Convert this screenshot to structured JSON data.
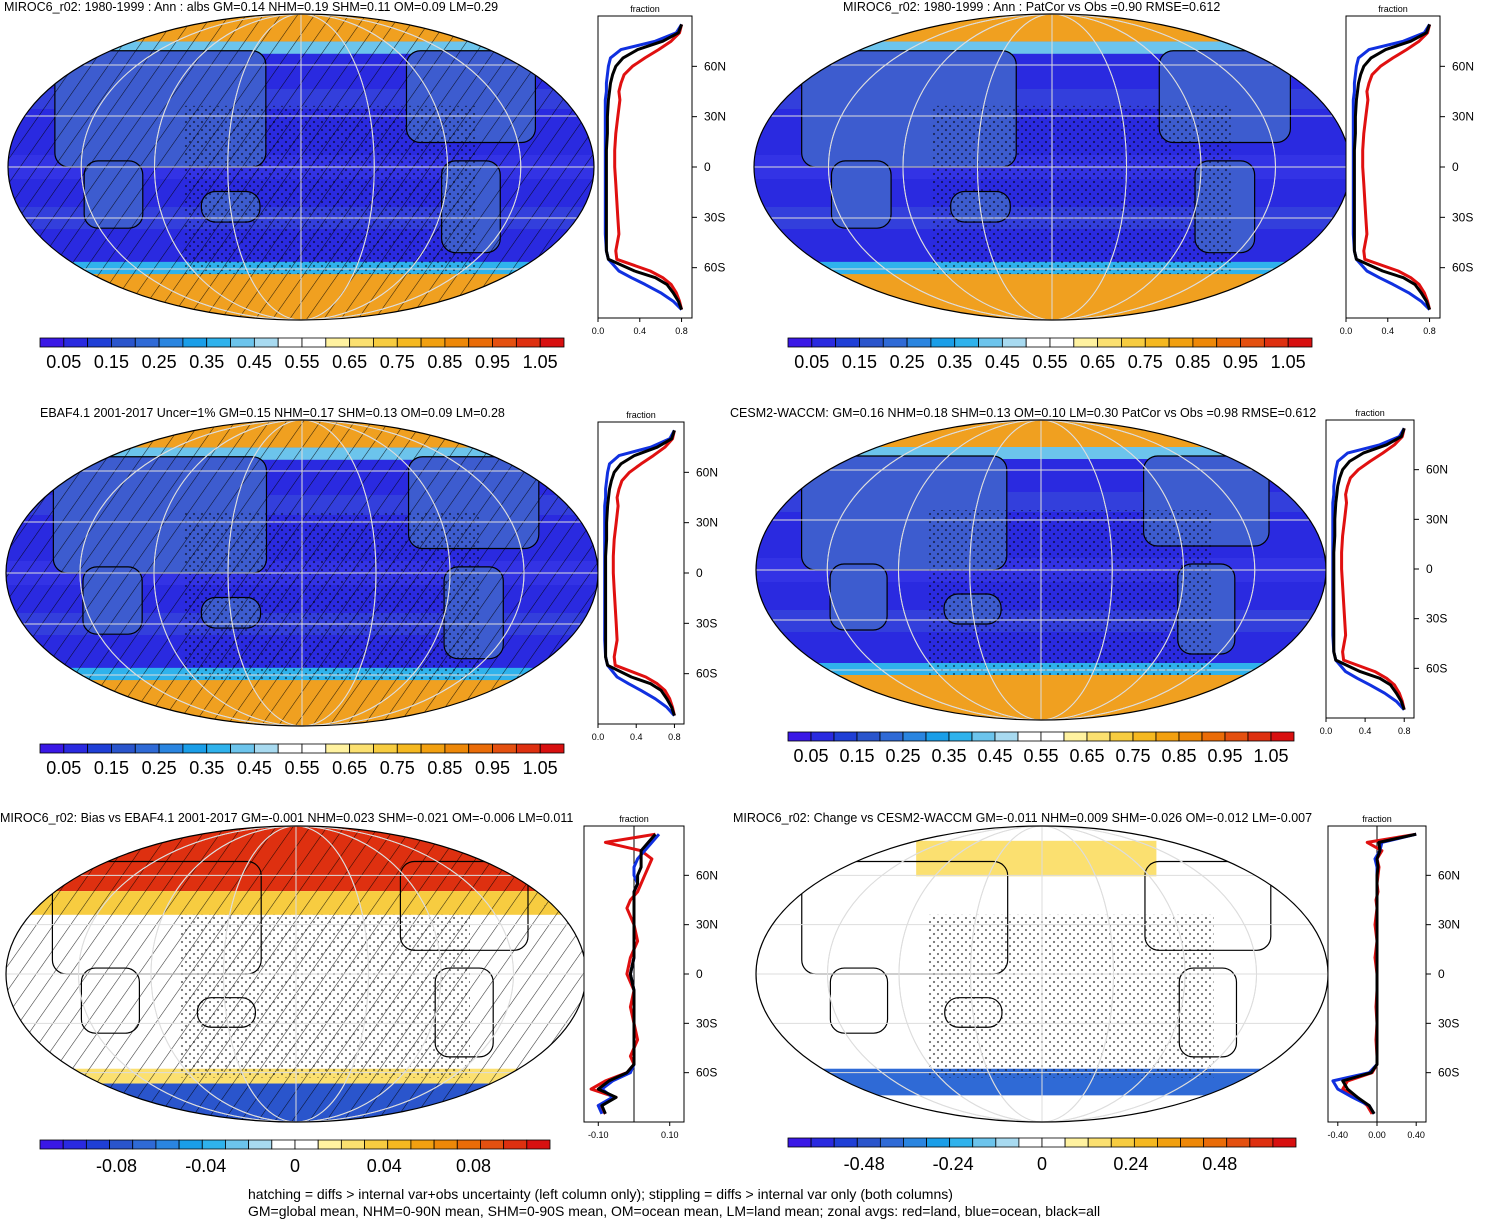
{
  "colors": {
    "ocean_low": "#2a2ae0",
    "land_mid": "#3d5ccf",
    "ice_high": "#f0a020",
    "zonal_land": "#e01010",
    "zonal_ocean": "#1030e0",
    "zonal_all": "#000000"
  },
  "colorbars": {
    "abs": {
      "labels": [
        "0.05",
        "0.15",
        "0.25",
        "0.35",
        "0.45",
        "0.55",
        "0.65",
        "0.75",
        "0.85",
        "0.95",
        "1.05"
      ],
      "colors": [
        "#3a18e6",
        "#2a2ae0",
        "#1f3fd6",
        "#2a55cc",
        "#2f6ad6",
        "#2a85e0",
        "#1a9ee8",
        "#2fb2ec",
        "#6cc4ec",
        "#a8daf0",
        "#ffffff",
        "#ffffff",
        "#fff2a0",
        "#fbe070",
        "#f7cc40",
        "#f5b820",
        "#f2a010",
        "#ee8808",
        "#ea6c08",
        "#e45010",
        "#de3010",
        "#d81010"
      ]
    },
    "bias": {
      "labels": [
        "-0.08",
        "-0.04",
        "0",
        "0.04",
        "0.08"
      ],
      "colors": [
        "#3a18e6",
        "#2a2ae0",
        "#1f3fd6",
        "#2a55cc",
        "#2f6ad6",
        "#2a85e0",
        "#1a9ee8",
        "#2fb2ec",
        "#6cc4ec",
        "#a8daf0",
        "#ffffff",
        "#ffffff",
        "#fff2a0",
        "#fbe070",
        "#f7cc40",
        "#f5b820",
        "#f2a010",
        "#ee8808",
        "#ea6c08",
        "#e45010",
        "#de3010",
        "#d81010"
      ]
    },
    "change": {
      "labels": [
        "-0.48",
        "-0.24",
        "0",
        "0.24",
        "0.48"
      ],
      "colors": [
        "#3a18e6",
        "#2a2ae0",
        "#1f3fd6",
        "#2a55cc",
        "#2f6ad6",
        "#2a85e0",
        "#1a9ee8",
        "#2fb2ec",
        "#6cc4ec",
        "#a8daf0",
        "#ffffff",
        "#ffffff",
        "#fff2a0",
        "#fbe070",
        "#f7cc40",
        "#f5b820",
        "#f2a010",
        "#ee8808",
        "#ea6c08",
        "#e45010",
        "#de3010",
        "#d81010"
      ]
    }
  },
  "panels": [
    {
      "title": "MIROC6_r02: 1980-1999 : Ann : albs GM=0.14 NHM=0.19 SHM=0.11 OM=0.09 LM=0.29",
      "map_style": "abs",
      "cbar": "abs",
      "zonal_kind": "abs"
    },
    {
      "title": "MIROC6_r02: 1980-1999 : Ann : PatCor vs Obs =0.90 RMSE=0.612",
      "map_style": "abs",
      "cbar": "abs",
      "zonal_kind": "abs"
    },
    {
      "title": "EBAF4.1 2001-2017 Uncer=1% GM=0.15 NHM=0.17 SHM=0.13 OM=0.09 LM=0.28",
      "map_style": "abs",
      "cbar": "abs",
      "zonal_kind": "abs"
    },
    {
      "title": "CESM2-WACCM: GM=0.16 NHM=0.18 SHM=0.13 OM=0.10 LM=0.30 PatCor vs Obs =0.98 RMSE=0.612",
      "map_style": "abs",
      "cbar": "abs",
      "zonal_kind": "abs"
    },
    {
      "title": "MIROC6_r02: Bias vs EBAF4.1 2001-2017 GM=-0.001 NHM=0.023 SHM=-0.021 OM=-0.006 LM=0.011",
      "map_style": "bias",
      "cbar": "bias",
      "zonal_kind": "bias"
    },
    {
      "title": "MIROC6_r02: Change vs CESM2-WACCM GM=-0.011 NHM=0.009 SHM=-0.026 OM=-0.012 LM=-0.007",
      "map_style": "change",
      "cbar": "change",
      "zonal_kind": "change"
    }
  ],
  "chart_data": [
    {
      "type": "line",
      "title": "fraction",
      "ylabel_ticks": [
        "60N",
        "30N",
        "0",
        "30S",
        "60S"
      ],
      "xticks": [
        "0.0",
        "0.4",
        "0.8"
      ],
      "xlim": [
        0,
        0.9
      ],
      "ylim": [
        -90,
        90
      ],
      "series": [
        {
          "name": "land",
          "lat": [
            85,
            80,
            75,
            70,
            65,
            60,
            55,
            50,
            45,
            40,
            30,
            20,
            10,
            0,
            -10,
            -20,
            -30,
            -40,
            -50,
            -55,
            -62,
            -66,
            -70,
            -75,
            -80,
            -85
          ],
          "values": [
            0.8,
            0.78,
            0.7,
            0.58,
            0.45,
            0.33,
            0.25,
            0.22,
            0.2,
            0.21,
            0.19,
            0.17,
            0.16,
            0.16,
            0.17,
            0.18,
            0.19,
            0.2,
            0.17,
            0.18,
            0.5,
            0.62,
            0.7,
            0.75,
            0.78,
            0.8
          ]
        },
        {
          "name": "ocean",
          "lat": [
            85,
            80,
            75,
            70,
            65,
            60,
            55,
            50,
            45,
            40,
            30,
            20,
            10,
            0,
            -10,
            -20,
            -30,
            -40,
            -50,
            -55,
            -62,
            -66,
            -70,
            -75,
            -80,
            -85
          ],
          "values": [
            0.8,
            0.75,
            0.55,
            0.22,
            0.12,
            0.1,
            0.09,
            0.08,
            0.08,
            0.07,
            0.07,
            0.07,
            0.07,
            0.07,
            0.07,
            0.07,
            0.07,
            0.07,
            0.08,
            0.1,
            0.2,
            0.32,
            0.45,
            0.6,
            0.72,
            0.8
          ]
        },
        {
          "name": "all",
          "lat": [
            85,
            80,
            75,
            70,
            65,
            60,
            55,
            50,
            45,
            40,
            30,
            20,
            10,
            0,
            -10,
            -20,
            -30,
            -40,
            -50,
            -55,
            -62,
            -66,
            -70,
            -75,
            -80,
            -85
          ],
          "values": [
            0.8,
            0.77,
            0.62,
            0.38,
            0.24,
            0.17,
            0.14,
            0.12,
            0.11,
            0.1,
            0.09,
            0.09,
            0.08,
            0.08,
            0.08,
            0.08,
            0.08,
            0.08,
            0.08,
            0.1,
            0.35,
            0.55,
            0.66,
            0.72,
            0.77,
            0.8
          ]
        }
      ]
    },
    {
      "type": "line",
      "title": "fraction",
      "ylabel_ticks": [
        "60N",
        "30N",
        "0",
        "30S",
        "60S"
      ],
      "xticks": [
        "-0.10",
        "0.10"
      ],
      "xlim": [
        -0.14,
        0.14
      ],
      "ylim": [
        -90,
        90
      ],
      "series": [
        {
          "name": "land",
          "lat": [
            85,
            80,
            75,
            70,
            65,
            60,
            55,
            50,
            45,
            40,
            30,
            20,
            10,
            0,
            -10,
            -20,
            -30,
            -40,
            -50,
            -55,
            -60,
            -65,
            -70,
            -75,
            -80,
            -85
          ],
          "values": [
            0.06,
            -0.08,
            0.02,
            0.05,
            0.04,
            0.03,
            0.02,
            0.01,
            -0.01,
            -0.02,
            0.0,
            0.01,
            -0.01,
            -0.02,
            0.0,
            -0.01,
            0.0,
            0.01,
            -0.01,
            0.0,
            -0.02,
            -0.08,
            -0.12,
            -0.05,
            -0.1,
            -0.08
          ]
        },
        {
          "name": "ocean",
          "lat": [
            85,
            80,
            75,
            70,
            65,
            60,
            55,
            50,
            45,
            40,
            30,
            20,
            10,
            0,
            -10,
            -20,
            -30,
            -40,
            -50,
            -55,
            -60,
            -65,
            -70,
            -75,
            -80,
            -85
          ],
          "values": [
            0.07,
            0.05,
            0.03,
            0.01,
            0.0,
            0.0,
            0.01,
            0.0,
            0.0,
            0.0,
            0.0,
            0.0,
            0.0,
            -0.01,
            0.0,
            0.0,
            0.0,
            0.0,
            0.0,
            0.0,
            -0.01,
            -0.06,
            -0.09,
            -0.06,
            -0.1,
            -0.09
          ]
        },
        {
          "name": "all",
          "lat": [
            85,
            80,
            75,
            70,
            65,
            60,
            55,
            50,
            45,
            40,
            30,
            20,
            10,
            0,
            -10,
            -20,
            -30,
            -40,
            -50,
            -55,
            -60,
            -65,
            -70,
            -75,
            -80,
            -85
          ],
          "values": [
            0.06,
            0.04,
            0.02,
            0.02,
            0.02,
            0.01,
            0.01,
            0.0,
            0.0,
            0.0,
            0.0,
            0.0,
            0.0,
            -0.01,
            0.0,
            0.0,
            0.0,
            0.0,
            0.0,
            0.0,
            -0.02,
            -0.07,
            -0.1,
            -0.05,
            -0.09,
            -0.08
          ]
        }
      ]
    },
    {
      "type": "line",
      "title": "fraction",
      "ylabel_ticks": [
        "60N",
        "30N",
        "0",
        "30S",
        "60S"
      ],
      "xticks": [
        "-0.40",
        "0.00",
        "0.40"
      ],
      "xlim": [
        -0.5,
        0.5
      ],
      "ylim": [
        -90,
        90
      ],
      "series": [
        {
          "name": "land",
          "lat": [
            85,
            80,
            75,
            70,
            65,
            60,
            55,
            50,
            45,
            40,
            30,
            20,
            10,
            0,
            -10,
            -20,
            -30,
            -40,
            -50,
            -55,
            -60,
            -65,
            -70,
            -75,
            -80,
            -85
          ],
          "values": [
            0.4,
            -0.1,
            0.05,
            0.0,
            0.02,
            0.01,
            0.0,
            0.01,
            -0.01,
            0.0,
            -0.02,
            0.0,
            -0.02,
            0.0,
            0.0,
            -0.01,
            0.0,
            -0.01,
            0.0,
            0.0,
            -0.05,
            -0.3,
            -0.35,
            -0.2,
            -0.1,
            -0.05
          ]
        },
        {
          "name": "ocean",
          "lat": [
            85,
            80,
            75,
            70,
            65,
            60,
            55,
            50,
            45,
            40,
            30,
            20,
            10,
            0,
            -10,
            -20,
            -30,
            -40,
            -50,
            -55,
            -60,
            -65,
            -70,
            -75,
            -80,
            -85
          ],
          "values": [
            0.4,
            0.05,
            0.03,
            -0.02,
            0.0,
            0.0,
            0.0,
            0.0,
            0.0,
            0.0,
            0.0,
            0.0,
            0.0,
            0.0,
            0.0,
            0.0,
            0.0,
            0.0,
            0.0,
            0.0,
            -0.08,
            -0.45,
            -0.4,
            -0.25,
            -0.08,
            -0.03
          ]
        },
        {
          "name": "all",
          "lat": [
            85,
            80,
            75,
            70,
            65,
            60,
            55,
            50,
            45,
            40,
            30,
            20,
            10,
            0,
            -10,
            -20,
            -30,
            -40,
            -50,
            -55,
            -60,
            -65,
            -70,
            -75,
            -80,
            -85
          ],
          "values": [
            0.4,
            0.02,
            0.03,
            0.0,
            0.01,
            0.0,
            0.0,
            0.0,
            0.0,
            0.0,
            0.0,
            0.0,
            0.0,
            0.0,
            0.0,
            0.0,
            0.0,
            0.0,
            0.0,
            0.0,
            -0.06,
            -0.35,
            -0.3,
            -0.2,
            -0.08,
            -0.03
          ]
        }
      ]
    }
  ],
  "footer": {
    "line1": "hatching = diffs > internal var+obs uncertainty (left column only); stippling = diffs > internal var only (both columns)",
    "line2": "GM=global mean, NHM=0-90N mean, SHM=0-90S mean, OM=ocean mean, LM=land mean; zonal avgs: red=land, blue=ocean, black=all"
  }
}
